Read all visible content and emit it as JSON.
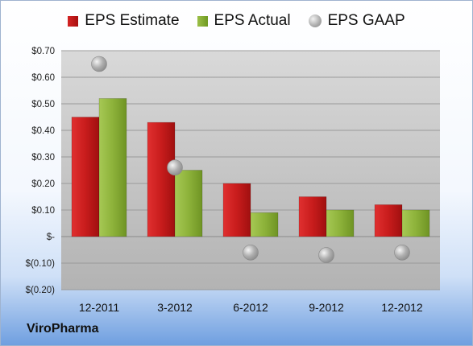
{
  "chart_data": {
    "type": "bar",
    "title": "",
    "xlabel": "",
    "ylabel": "",
    "categories": [
      "12-2011",
      "3-2012",
      "6-2012",
      "9-2012",
      "12-2012"
    ],
    "series": [
      {
        "name": "EPS Estimate",
        "kind": "bar",
        "color": "#c81c1c",
        "values": [
          0.45,
          0.43,
          0.2,
          0.15,
          0.12
        ]
      },
      {
        "name": "EPS Actual",
        "kind": "bar",
        "color": "#8db23a",
        "values": [
          0.52,
          0.25,
          0.09,
          0.1,
          0.1
        ]
      },
      {
        "name": "EPS GAAP",
        "kind": "marker",
        "color": "#a9a9a9",
        "values": [
          0.65,
          0.26,
          -0.06,
          -0.07,
          -0.06
        ]
      }
    ],
    "ylim": [
      -0.2,
      0.7
    ],
    "yticks": [
      0.7,
      0.6,
      0.5,
      0.4,
      0.3,
      0.2,
      0.1,
      0,
      -0.1,
      -0.2
    ],
    "ytick_labels": [
      "$0.70",
      "$0.60",
      "$0.50",
      "$0.40",
      "$0.30",
      "$0.20",
      "$0.10",
      "$-",
      "$(0.10)",
      "$(0.20)"
    ],
    "grid": true,
    "legend_position": "top"
  },
  "legend": {
    "estimate": "EPS Estimate",
    "actual": "EPS Actual",
    "gaap": "EPS GAAP"
  },
  "company": "ViroPharma"
}
